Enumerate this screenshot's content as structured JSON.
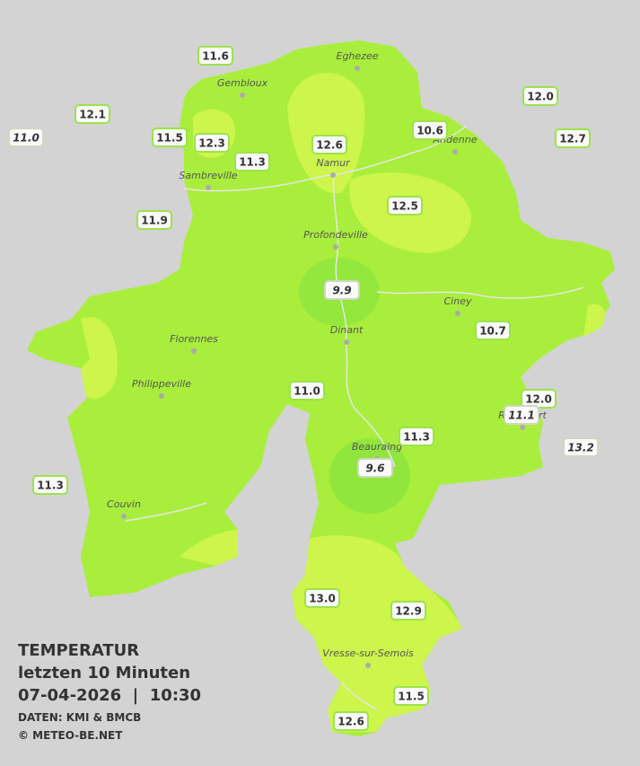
{
  "legend": {
    "title": "TEMPERATUR",
    "subtitle": "letzten 10 Minuten",
    "datetime": "07-04-2026  |  10:30",
    "source": "DATEN: KMI & BMCB",
    "copyright": "© METEO-BE.NET"
  },
  "cities": [
    "Eghezee",
    "Gembloux",
    "Andenne",
    "Namur",
    "Sambreville",
    "Profondeville",
    "Ciney",
    "Dinant",
    "Florennes",
    "Philippeville",
    "Rochefort",
    "Beauraing",
    "Couvin",
    "Vresse-sur-Semois"
  ],
  "stations": [
    "11.6",
    "12.1",
    "11.0",
    "11.5",
    "12.3",
    "11.3",
    "12.6",
    "10.6",
    "12.0",
    "12.7",
    "11.9",
    "12.5",
    "9.9",
    "10.7",
    "11.0",
    "12.0",
    "11.1",
    "11.3",
    "13.2",
    "9.6",
    "11.3",
    "13.0",
    "12.9",
    "11.5",
    "12.6"
  ]
}
